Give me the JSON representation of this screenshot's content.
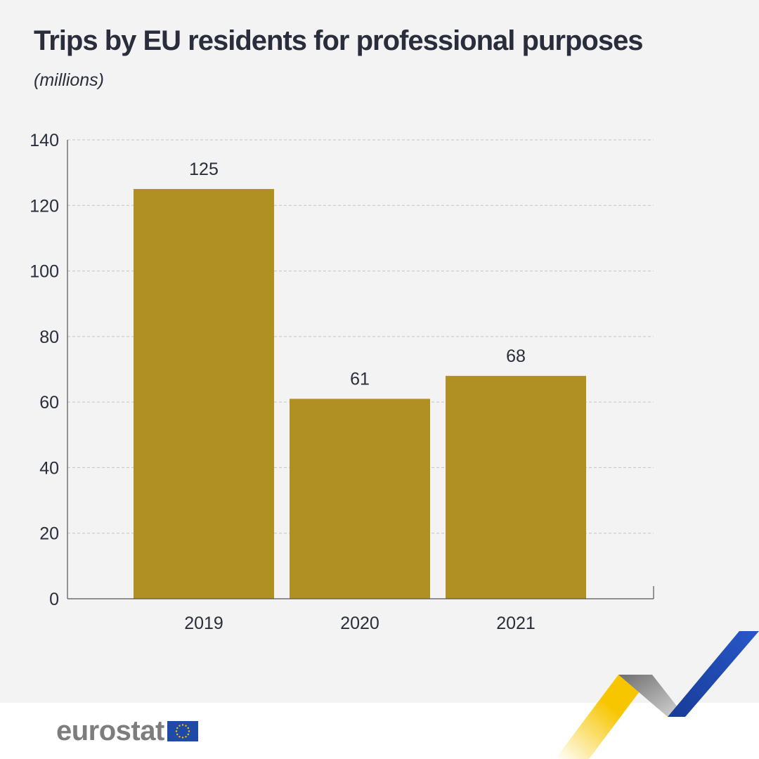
{
  "title": "Trips by EU residents for professional purposes",
  "subtitle": "(millions)",
  "brand": {
    "wordmark": "eurostat",
    "flag_icon": "eu-flag-icon",
    "ribbon_colors": [
      "#f7c600",
      "#9a9a9a",
      "#1f4aa8"
    ]
  },
  "colors": {
    "bar": "#b09023",
    "text": "#2a2d3c",
    "background": "#f3f3f3"
  },
  "chart_data": {
    "type": "bar",
    "categories": [
      "2019",
      "2020",
      "2021"
    ],
    "values": [
      125,
      61,
      68
    ],
    "data_labels": [
      "125",
      "61",
      "68"
    ],
    "title": "Trips by EU residents for professional purposes",
    "subtitle": "(millions)",
    "xlabel": "",
    "ylabel": "",
    "ylim": [
      0,
      140
    ],
    "yticks": [
      0,
      20,
      40,
      60,
      80,
      100,
      120,
      140
    ],
    "grid": true
  }
}
